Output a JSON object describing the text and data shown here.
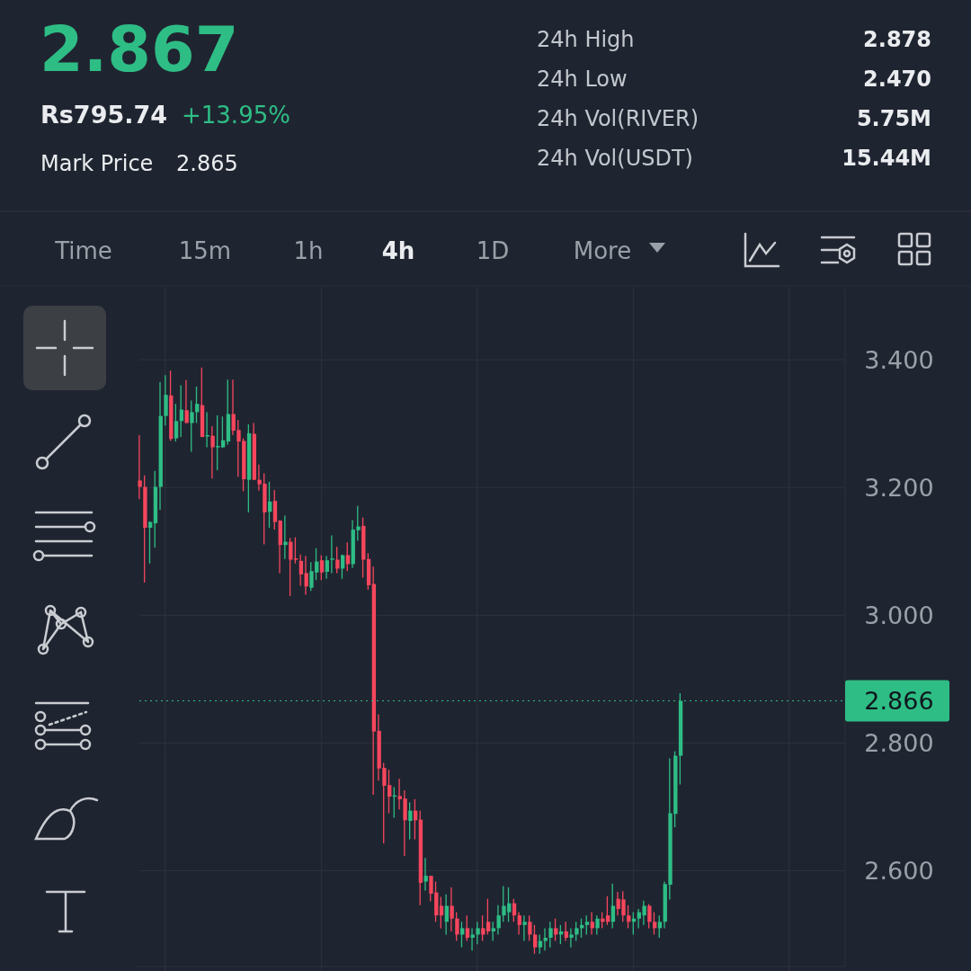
{
  "chart_data": {
    "type": "candlestick",
    "title": "2.867",
    "annotations": [
      "Rs795.74",
      "+13.95%",
      "Mark Price",
      "2.865",
      "24h High",
      "2.878",
      "24h Low",
      "2.470",
      "24h Vol(RIVER)",
      "5.75M",
      "24h Vol(USDT)",
      "15.44M",
      "Time",
      "15m",
      "1h",
      "4h",
      "1D",
      "More"
    ],
    "categories": [
      null,
      null,
      null,
      null,
      null,
      null,
      null,
      null,
      null,
      null,
      null,
      null,
      null,
      null,
      null,
      null,
      null,
      null,
      null,
      null,
      null,
      null,
      null,
      null,
      null,
      null,
      null,
      null,
      null,
      null,
      null,
      null,
      null,
      null,
      null,
      null,
      null,
      null,
      null,
      null,
      null,
      null,
      null,
      null,
      null,
      null,
      null,
      null,
      null,
      null,
      null,
      null,
      null,
      null,
      null,
      null,
      null,
      null,
      null,
      null,
      null,
      null,
      null,
      null,
      null,
      null,
      null,
      null,
      null,
      null,
      null,
      null,
      null,
      null,
      null,
      null,
      null,
      null,
      null,
      null,
      null,
      null,
      null,
      null,
      null,
      null,
      null,
      null,
      null,
      null,
      null,
      null,
      null,
      null,
      null,
      null,
      null,
      null,
      null,
      null,
      null,
      null,
      null,
      null,
      null,
      null,
      null,
      null,
      null,
      null,
      null,
      null,
      null,
      null,
      null,
      null,
      null,
      null,
      null,
      null,
      null,
      null,
      null,
      null,
      null,
      null,
      null,
      null,
      null,
      null,
      null,
      null,
      null,
      null,
      null,
      null
    ],
    "ohlc": [
      [
        3.211,
        3.282,
        3.182,
        3.201
      ],
      [
        3.201,
        3.219,
        3.051,
        3.137
      ],
      [
        3.137,
        3.147,
        3.081,
        3.146
      ],
      [
        3.144,
        3.226,
        3.106,
        3.201
      ],
      [
        3.201,
        3.365,
        3.165,
        3.312
      ],
      [
        3.312,
        3.376,
        3.297,
        3.345
      ],
      [
        3.344,
        3.383,
        3.273,
        3.276
      ],
      [
        3.277,
        3.331,
        3.272,
        3.304
      ],
      [
        3.304,
        3.36,
        3.279,
        3.322
      ],
      [
        3.321,
        3.368,
        3.301,
        3.301
      ],
      [
        3.301,
        3.336,
        3.256,
        3.318
      ],
      [
        3.318,
        3.358,
        3.301,
        3.331
      ],
      [
        3.329,
        3.388,
        3.279,
        3.279
      ],
      [
        3.28,
        3.318,
        3.263,
        3.282
      ],
      [
        3.281,
        3.296,
        3.214,
        3.263
      ],
      [
        3.264,
        3.313,
        3.227,
        3.265
      ],
      [
        3.263,
        3.311,
        3.262,
        3.274
      ],
      [
        3.272,
        3.369,
        3.267,
        3.315
      ],
      [
        3.315,
        3.369,
        3.282,
        3.289
      ],
      [
        3.29,
        3.306,
        3.217,
        3.272
      ],
      [
        3.273,
        3.277,
        3.194,
        3.213
      ],
      [
        3.212,
        3.299,
        3.161,
        3.285
      ],
      [
        3.284,
        3.301,
        3.212,
        3.212
      ],
      [
        3.212,
        3.236,
        3.195,
        3.205
      ],
      [
        3.206,
        3.222,
        3.111,
        3.161
      ],
      [
        3.162,
        3.209,
        3.137,
        3.178
      ],
      [
        3.179,
        3.196,
        3.134,
        3.146
      ],
      [
        3.148,
        3.149,
        3.066,
        3.11
      ],
      [
        3.11,
        3.156,
        3.088,
        3.115
      ],
      [
        3.115,
        3.121,
        3.03,
        3.087
      ],
      [
        3.089,
        3.122,
        3.081,
        3.087
      ],
      [
        3.085,
        3.095,
        3.046,
        3.064
      ],
      [
        3.066,
        3.093,
        3.032,
        3.045
      ],
      [
        3.043,
        3.083,
        3.038,
        3.069
      ],
      [
        3.067,
        3.105,
        3.055,
        3.084
      ],
      [
        3.086,
        3.094,
        3.055,
        3.067
      ],
      [
        3.068,
        3.093,
        3.057,
        3.086
      ],
      [
        3.087,
        3.125,
        3.066,
        3.089
      ],
      [
        3.087,
        3.107,
        3.066,
        3.073
      ],
      [
        3.073,
        3.095,
        3.057,
        3.094
      ],
      [
        3.094,
        3.114,
        3.069,
        3.08
      ],
      [
        3.08,
        3.149,
        3.074,
        3.134
      ],
      [
        3.133,
        3.171,
        3.117,
        3.139
      ],
      [
        3.14,
        3.153,
        3.059,
        3.087
      ],
      [
        3.088,
        3.097,
        3.04,
        3.047
      ],
      [
        3.049,
        3.076,
        2.719,
        2.818
      ],
      [
        2.819,
        2.845,
        2.741,
        2.76
      ],
      [
        2.761,
        2.769,
        2.643,
        2.733
      ],
      [
        2.734,
        2.758,
        2.69,
        2.716
      ],
      [
        2.716,
        2.731,
        2.683,
        2.718
      ],
      [
        2.717,
        2.744,
        2.696,
        2.712
      ],
      [
        2.713,
        2.726,
        2.623,
        2.679
      ],
      [
        2.678,
        2.707,
        2.649,
        2.694
      ],
      [
        2.694,
        2.712,
        2.649,
        2.679
      ],
      [
        2.68,
        2.694,
        2.546,
        2.581
      ],
      [
        2.583,
        2.62,
        2.569,
        2.592
      ],
      [
        2.592,
        2.592,
        2.552,
        2.564
      ],
      [
        2.566,
        2.583,
        2.52,
        2.53
      ],
      [
        2.545,
        2.559,
        2.51,
        2.53
      ],
      [
        2.52,
        2.563,
        2.5,
        2.545
      ],
      [
        2.545,
        2.574,
        2.505,
        2.525
      ],
      [
        2.525,
        2.535,
        2.49,
        2.5
      ],
      [
        2.5,
        2.52,
        2.48,
        2.51
      ],
      [
        2.51,
        2.53,
        2.49,
        2.495
      ],
      [
        2.495,
        2.51,
        2.475,
        2.5
      ],
      [
        2.5,
        2.52,
        2.485,
        2.51
      ],
      [
        2.51,
        2.53,
        2.49,
        2.5
      ],
      [
        2.52,
        2.556,
        2.5,
        2.505
      ],
      [
        2.505,
        2.52,
        2.49,
        2.51
      ],
      [
        2.51,
        2.546,
        2.5,
        2.53
      ],
      [
        2.53,
        2.576,
        2.52,
        2.545
      ],
      [
        2.535,
        2.574,
        2.52,
        2.549
      ],
      [
        2.549,
        2.556,
        2.52,
        2.53
      ],
      [
        2.53,
        2.535,
        2.5,
        2.515
      ],
      [
        2.515,
        2.53,
        2.49,
        2.52
      ],
      [
        2.52,
        2.53,
        2.49,
        2.5
      ],
      [
        2.5,
        2.515,
        2.47,
        2.48
      ],
      [
        2.48,
        2.5,
        2.47,
        2.49
      ],
      [
        2.49,
        2.51,
        2.475,
        2.495
      ],
      [
        2.495,
        2.52,
        2.48,
        2.51
      ],
      [
        2.51,
        2.525,
        2.49,
        2.5
      ],
      [
        2.5,
        2.515,
        2.485,
        2.505
      ],
      [
        2.505,
        2.52,
        2.49,
        2.495
      ],
      [
        2.495,
        2.51,
        2.48,
        2.5
      ],
      [
        2.5,
        2.52,
        2.49,
        2.51
      ],
      [
        2.51,
        2.525,
        2.495,
        2.515
      ],
      [
        2.515,
        2.53,
        2.5,
        2.52
      ],
      [
        2.52,
        2.535,
        2.5,
        2.51
      ],
      [
        2.51,
        2.53,
        2.5,
        2.525
      ],
      [
        2.525,
        2.535,
        2.51,
        2.52
      ],
      [
        2.53,
        2.56,
        2.515,
        2.52
      ],
      [
        2.52,
        2.58,
        2.51,
        2.545
      ],
      [
        2.556,
        2.567,
        2.53,
        2.54
      ],
      [
        2.555,
        2.568,
        2.52,
        2.53
      ],
      [
        2.53,
        2.546,
        2.51,
        2.52
      ],
      [
        2.52,
        2.535,
        2.5,
        2.525
      ],
      [
        2.525,
        2.54,
        2.51,
        2.535
      ],
      [
        2.53,
        2.553,
        2.515,
        2.545
      ],
      [
        2.545,
        2.548,
        2.51,
        2.52
      ],
      [
        2.52,
        2.535,
        2.5,
        2.51
      ],
      [
        2.51,
        2.53,
        2.495,
        2.52
      ],
      [
        2.52,
        2.583,
        2.51,
        2.579
      ],
      [
        2.578,
        2.776,
        2.555,
        2.69
      ],
      [
        2.689,
        2.787,
        2.668,
        2.78
      ],
      [
        2.78,
        2.878,
        2.735,
        2.866
      ],
      null,
      null,
      null,
      null,
      null,
      null,
      null,
      null,
      null,
      null,
      null,
      null,
      null,
      null,
      null,
      null,
      null,
      null,
      null,
      null,
      null,
      null,
      null,
      null,
      null,
      null,
      null,
      null,
      null,
      null,
      null
    ],
    "colors": [
      "#f6465d",
      "#f6465d",
      "#2ebd85",
      "#2ebd85",
      "#2ebd85",
      "#2ebd85",
      "#f6465d",
      "#2ebd85",
      "#2ebd85",
      "#f6465d",
      "#2ebd85",
      "#2ebd85",
      "#f6465d",
      "#2ebd85",
      "#f6465d",
      "#2ebd85",
      "#2ebd85",
      "#2ebd85",
      "#f6465d",
      "#f6465d",
      "#f6465d",
      "#2ebd85",
      "#f6465d",
      "#f6465d",
      "#f6465d",
      "#2ebd85",
      "#f6465d",
      "#f6465d",
      "#2ebd85",
      "#f6465d",
      "#f6465d",
      "#f6465d",
      "#f6465d",
      "#2ebd85",
      "#2ebd85",
      "#f6465d",
      "#2ebd85",
      "#2ebd85",
      "#f6465d",
      "#2ebd85",
      "#f6465d",
      "#2ebd85",
      "#2ebd85",
      "#f6465d",
      "#f6465d",
      "#f6465d",
      "#f6465d",
      "#f6465d",
      "#f6465d",
      "#2ebd85",
      "#f6465d",
      "#f6465d",
      "#2ebd85",
      "#f6465d",
      "#f6465d",
      "#2ebd85",
      "#f6465d",
      "#f6465d",
      "#f6465d",
      "#2ebd85",
      "#f6465d",
      "#f6465d",
      "#2ebd85",
      "#f6465d",
      "#2ebd85",
      "#2ebd85",
      "#f6465d",
      "#f6465d",
      "#2ebd85",
      "#2ebd85",
      "#2ebd85",
      "#2ebd85",
      "#f6465d",
      "#f6465d",
      "#2ebd85",
      "#f6465d",
      "#f6465d",
      "#2ebd85",
      "#2ebd85",
      "#2ebd85",
      "#f6465d",
      "#2ebd85",
      "#f6465d",
      "#2ebd85",
      "#2ebd85",
      "#2ebd85",
      "#2ebd85",
      "#f6465d",
      "#2ebd85",
      "#f6465d",
      "#f6465d",
      "#2ebd85",
      "#f6465d",
      "#f6465d",
      "#f6465d",
      "#2ebd85",
      "#2ebd85",
      "#2ebd85",
      "#f6465d",
      "#f6465d",
      "#2ebd85",
      "#2ebd85",
      "#2ebd85",
      "#2ebd85",
      "#2ebd85",
      null,
      null,
      null,
      null,
      null,
      null,
      null,
      null,
      null,
      null,
      null,
      null,
      null,
      null,
      null,
      null,
      null,
      null,
      null,
      null,
      null,
      null,
      null,
      null,
      null,
      null,
      null,
      null,
      null,
      null,
      null
    ],
    "ylim": [
      2.45,
      3.51
    ],
    "yticks": [
      {
        "value": 2.6,
        "label": "2.600"
      },
      {
        "value": 2.8,
        "label": "2.800"
      },
      {
        "value": 3.0,
        "label": "3.000"
      },
      {
        "value": 3.2,
        "label": "3.200"
      },
      {
        "value": 3.4,
        "label": "3.400"
      }
    ],
    "ref_lines": [
      {
        "axis": "y",
        "value": 2.866,
        "label": "2.866",
        "color": "#2ebd85",
        "line_style": "dotted"
      }
    ],
    "grid": true
  }
}
